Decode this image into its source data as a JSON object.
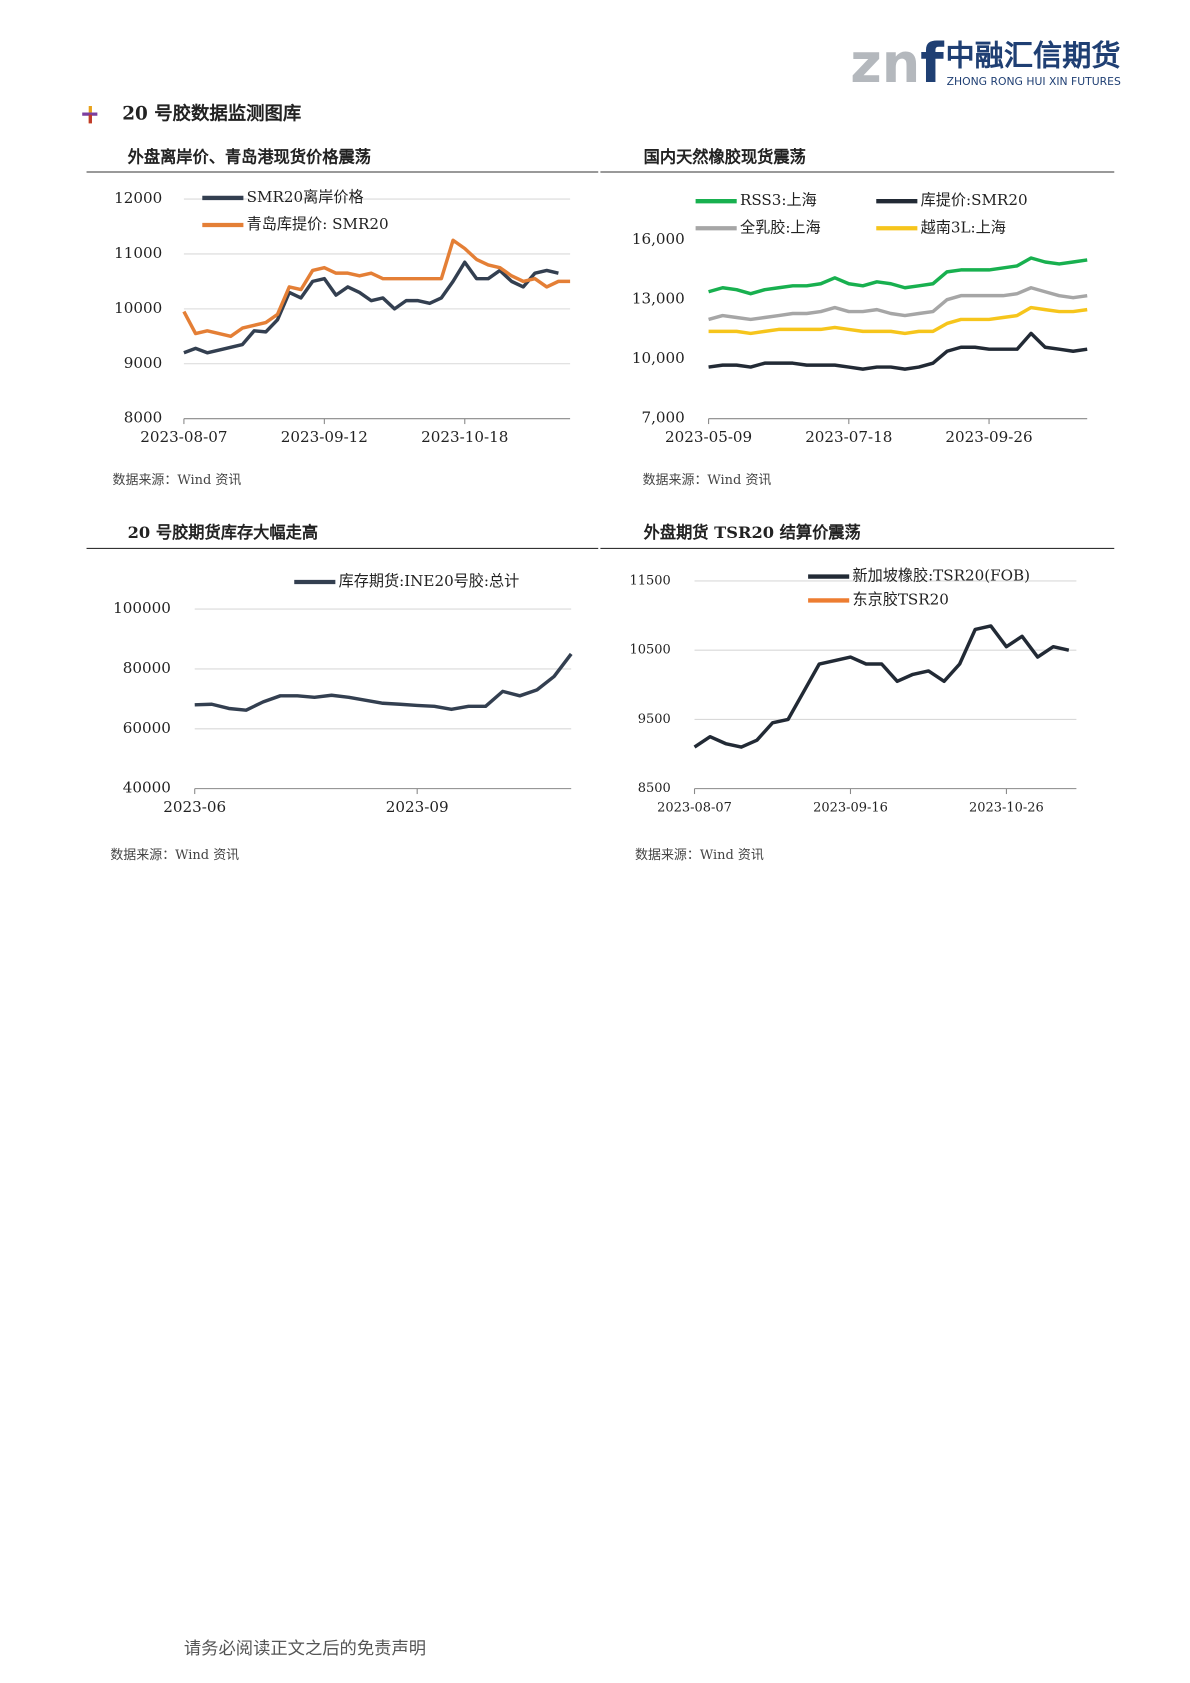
{
  "header": {
    "logo_mark_left": "zn",
    "logo_mark_right": "f",
    "logo_cn": "中融汇信期货",
    "logo_en": "ZHONG RONG HUI XIN FUTURES"
  },
  "section_title": "20 号胶数据监测图库",
  "chart_data": [
    {
      "type": "line",
      "title": "外盘离岸价、青岛港现货价格震荡",
      "source": "数据来源：Wind 资讯",
      "categories": [
        "2023-08-07",
        null,
        null,
        null,
        null,
        null,
        null,
        null,
        null,
        null,
        null,
        null,
        "2023-09-12",
        null,
        null,
        null,
        null,
        null,
        null,
        null,
        null,
        null,
        null,
        null,
        "2023-10-18",
        null,
        null,
        null,
        null,
        null,
        null,
        null,
        null,
        null
      ],
      "series": [
        {
          "name": "SMR20离岸价格",
          "color": "#333f50",
          "values": [
            9200,
            9280,
            9200,
            9250,
            9300,
            9350,
            9600,
            9580,
            9800,
            10300,
            10200,
            10500,
            10550,
            10250,
            10400,
            10300,
            10150,
            10200,
            10000,
            10150,
            10150,
            10100,
            10200,
            10500,
            10850,
            10550,
            10550,
            10700,
            10500,
            10400,
            10650,
            10700,
            10650,
            null
          ]
        },
        {
          "name": "青岛库提价: SMR20",
          "color": "#e47f36",
          "values": [
            9950,
            9550,
            9600,
            9550,
            9500,
            9650,
            9700,
            9750,
            9900,
            10400,
            10350,
            10700,
            10750,
            10650,
            10650,
            10600,
            10650,
            10550,
            10550,
            10550,
            10550,
            10550,
            10550,
            11250,
            11100,
            10900,
            10800,
            10750,
            10600,
            10500,
            10550,
            10400,
            10500,
            10500
          ]
        }
      ],
      "ylim": [
        8000,
        12000
      ],
      "yticks": [
        8000,
        9000,
        10000,
        11000,
        12000
      ],
      "grid": true
    },
    {
      "type": "line",
      "title": "国内天然橡胶现货震荡",
      "source": "数据来源：Wind 资讯",
      "categories": [
        "2023-05-09",
        null,
        null,
        null,
        null,
        null,
        null,
        null,
        null,
        null,
        "2023-07-18",
        null,
        null,
        null,
        null,
        null,
        null,
        null,
        null,
        null,
        "2023-09-26",
        null,
        null,
        null,
        null,
        null,
        null,
        null
      ],
      "series": [
        {
          "name": "RSS3:上海",
          "color": "#18b04f",
          "values": [
            13400,
            13600,
            13500,
            13300,
            13500,
            13600,
            13700,
            13700,
            13800,
            14100,
            13800,
            13700,
            13900,
            13800,
            13600,
            13700,
            13800,
            14400,
            14500,
            14500,
            14500,
            14600,
            14700,
            15100,
            14900,
            14800,
            14900,
            15000
          ]
        },
        {
          "name": "库提价:SMR20",
          "color": "#222a35",
          "values": [
            9600,
            9700,
            9700,
            9600,
            9800,
            9800,
            9800,
            9700,
            9700,
            9700,
            9600,
            9500,
            9600,
            9600,
            9500,
            9600,
            9800,
            10400,
            10600,
            10600,
            10500,
            10500,
            10500,
            11300,
            10600,
            10500,
            10400,
            10500
          ]
        },
        {
          "name": "全乳胶:上海",
          "color": "#a6a6a6",
          "values": [
            12000,
            12200,
            12100,
            12000,
            12100,
            12200,
            12300,
            12300,
            12400,
            12600,
            12400,
            12400,
            12500,
            12300,
            12200,
            12300,
            12400,
            13000,
            13200,
            13200,
            13200,
            13200,
            13300,
            13600,
            13400,
            13200,
            13100,
            13200
          ]
        },
        {
          "name": "越南3L:上海",
          "color": "#f6c51c",
          "values": [
            11400,
            11400,
            11400,
            11300,
            11400,
            11500,
            11500,
            11500,
            11500,
            11600,
            11500,
            11400,
            11400,
            11400,
            11300,
            11400,
            11400,
            11800,
            12000,
            12000,
            12000,
            12100,
            12200,
            12600,
            12500,
            12400,
            12400,
            12500
          ]
        }
      ],
      "ylim": [
        7000,
        16000
      ],
      "yticks": [
        {
          "value": 7000,
          "label": "7,000"
        },
        {
          "value": 10000,
          "label": "10,000"
        },
        {
          "value": 13000,
          "label": "13,000"
        },
        {
          "value": 16000,
          "label": "16,000"
        }
      ],
      "grid": false
    },
    {
      "type": "line",
      "title": "20 号胶期货库存大幅走高",
      "source": "数据来源：Wind 资讯",
      "categories": [
        "2023-06",
        null,
        null,
        null,
        null,
        null,
        null,
        null,
        null,
        null,
        null,
        null,
        null,
        "2023-09",
        null,
        null,
        null,
        null,
        null,
        null,
        null,
        null,
        null
      ],
      "series": [
        {
          "name": "库存期货:INE20号胶:总计",
          "color": "#333f50",
          "values": [
            68000,
            68200,
            66800,
            66200,
            69000,
            71000,
            71000,
            70500,
            71200,
            70500,
            69500,
            68500,
            68200,
            67800,
            67500,
            66500,
            67500,
            67500,
            72500,
            71000,
            73000,
            77500,
            85000
          ]
        }
      ],
      "ylim": [
        40000,
        100000
      ],
      "yticks": [
        40000,
        60000,
        80000,
        100000
      ],
      "grid": true
    },
    {
      "type": "line",
      "title": "外盘期货 TSR20 结算价震荡",
      "source": "数据来源：Wind 资讯",
      "categories": [
        "2023-08-07",
        null,
        null,
        null,
        null,
        null,
        null,
        null,
        null,
        null,
        "2023-09-16",
        null,
        null,
        null,
        null,
        null,
        null,
        null,
        null,
        null,
        "2023-10-26",
        null,
        null,
        null,
        null
      ],
      "series": [
        {
          "name": "新加坡橡胶:TSR20(FOB)",
          "color": "#222a35",
          "values": [
            9100,
            9250,
            9150,
            9100,
            9200,
            9450,
            9500,
            9900,
            10300,
            10350,
            10400,
            10300,
            10300,
            10050,
            10150,
            10200,
            10050,
            10300,
            10800,
            10850,
            10550,
            10700,
            10400,
            10550,
            10500
          ]
        },
        {
          "name": "东京胶TSR20",
          "color": "#ed7d31",
          "values": [
            null,
            null,
            null,
            null,
            null,
            null,
            null,
            null,
            null,
            null,
            null,
            null,
            null,
            null,
            null,
            null,
            null,
            null,
            null,
            null,
            null,
            null,
            null,
            null,
            null
          ]
        }
      ],
      "ylim": [
        8500,
        11500
      ],
      "yticks": [
        8500,
        9500,
        10500,
        11500
      ],
      "grid": true
    }
  ],
  "footer": "请务必阅读正文之后的免责声明"
}
